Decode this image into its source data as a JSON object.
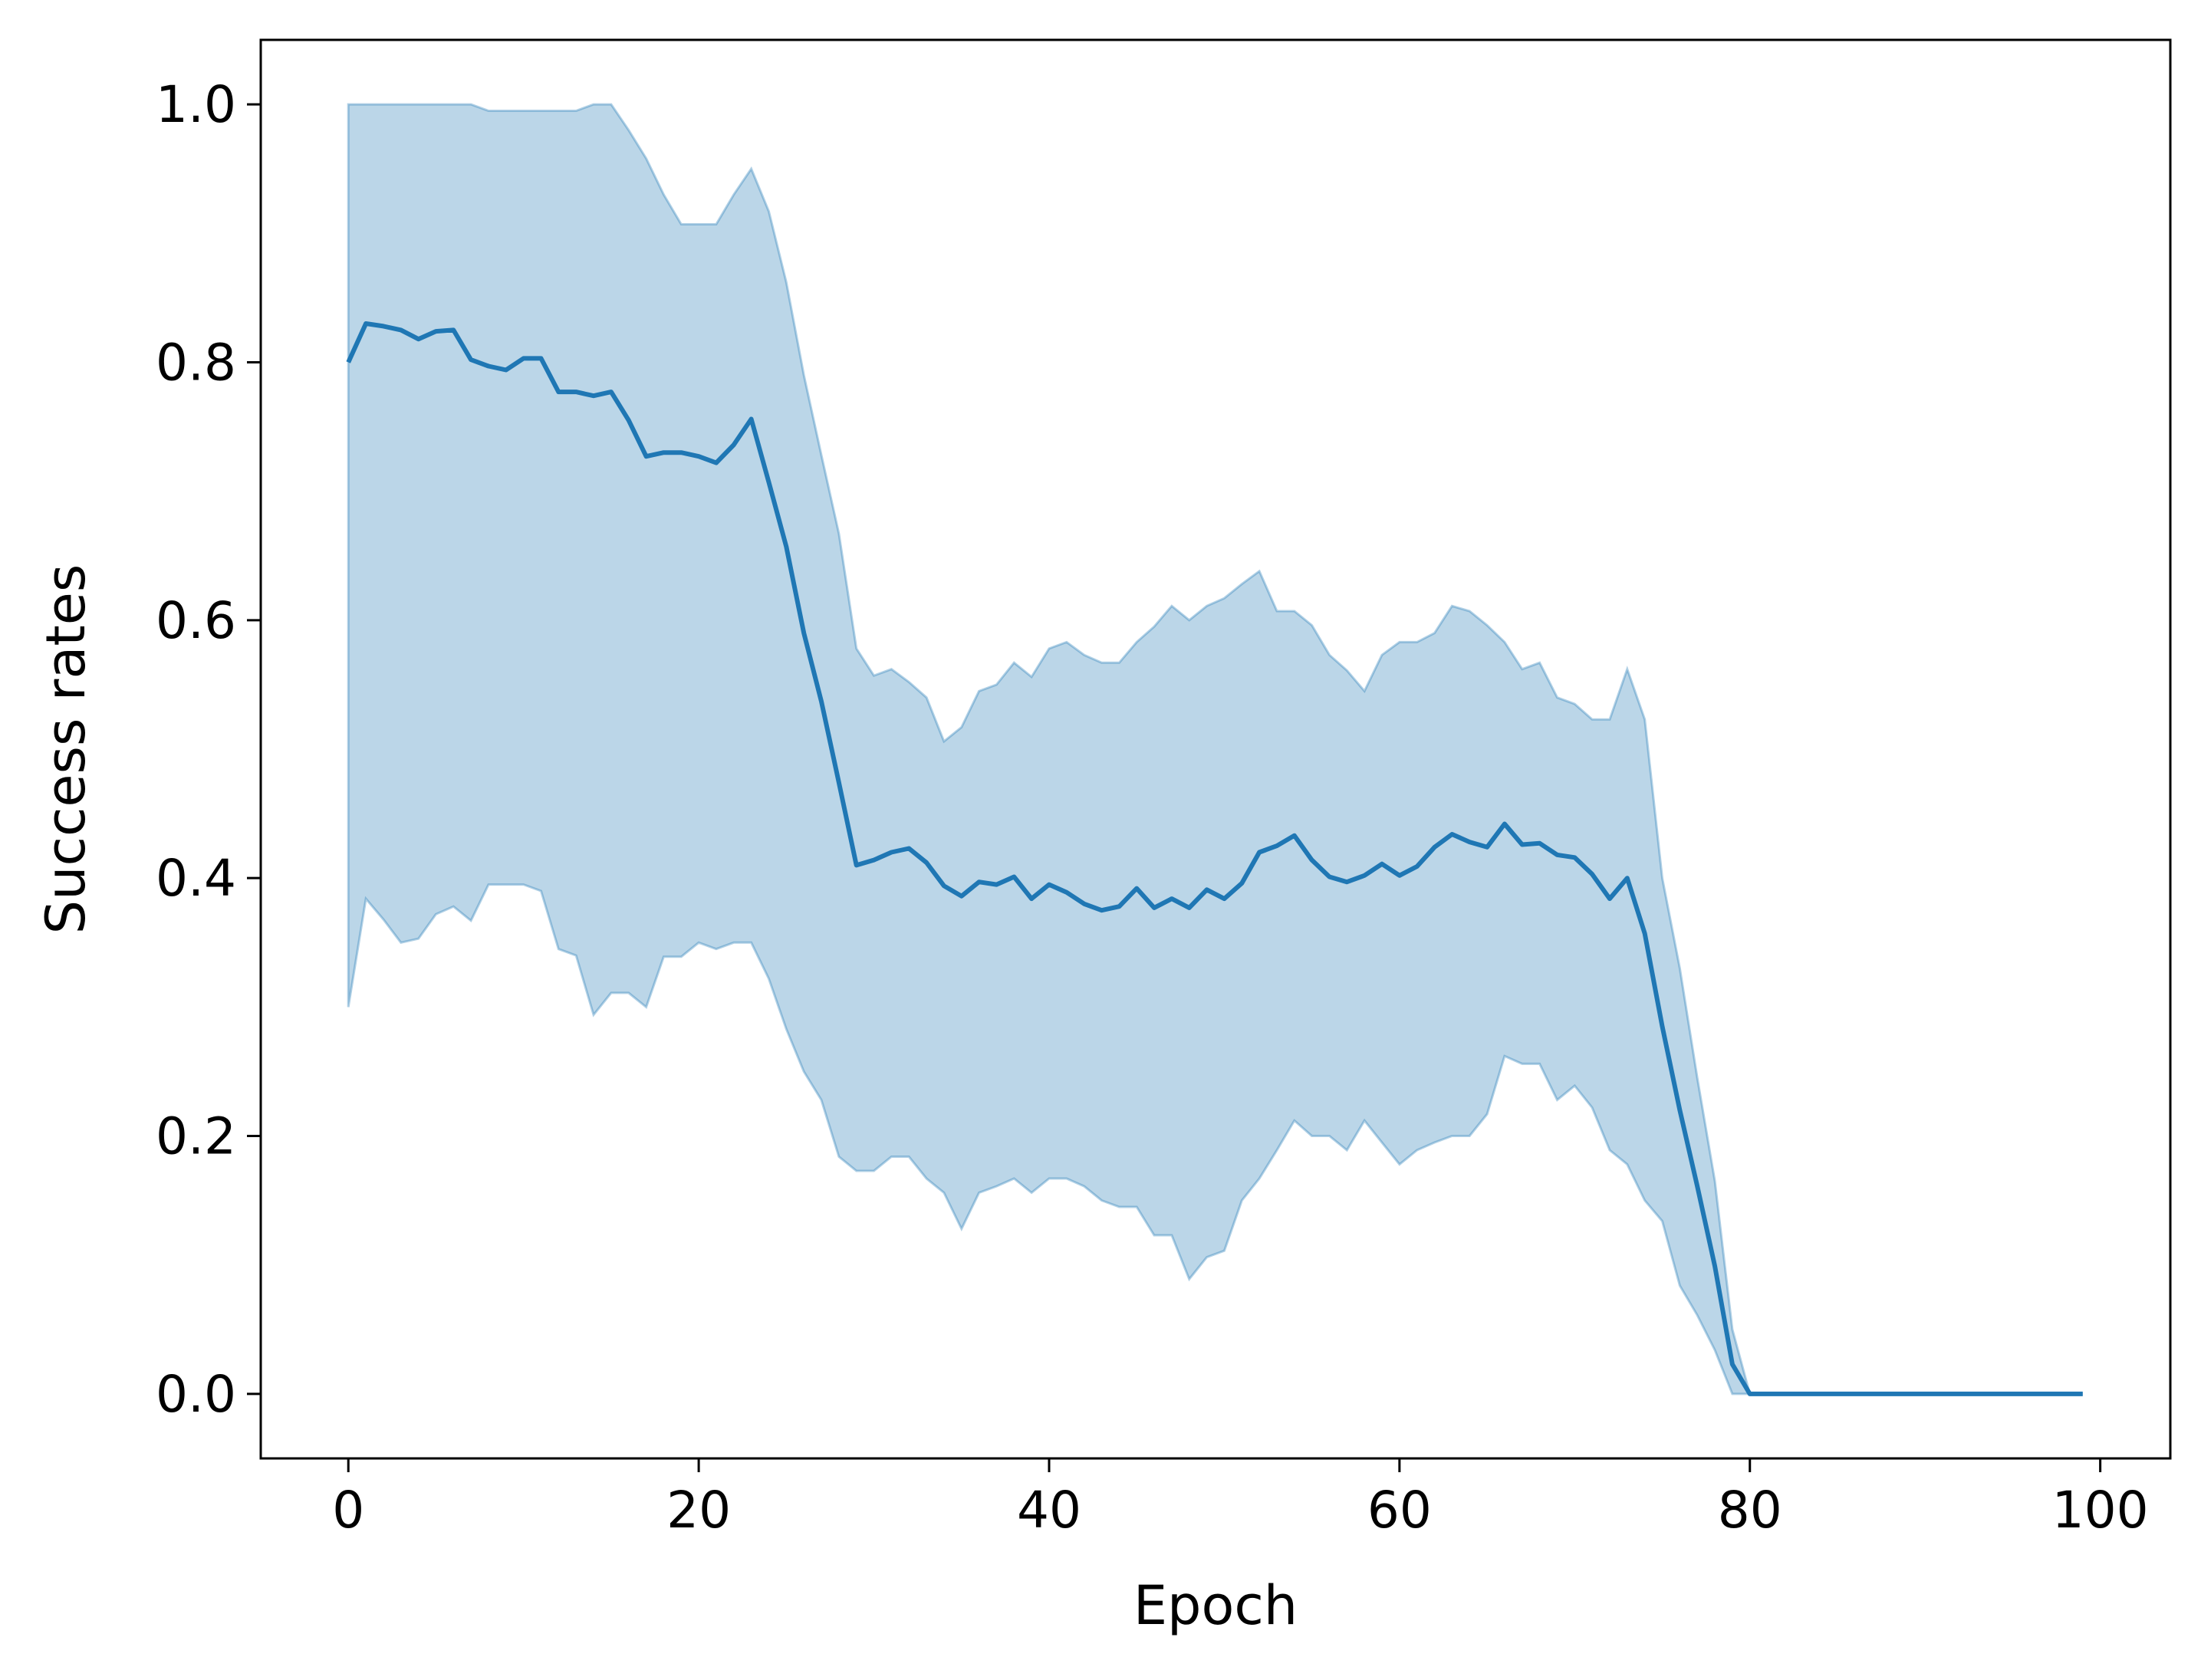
{
  "chart_data": {
    "type": "line",
    "title": "",
    "xlabel": "Epoch",
    "ylabel": "Success rates",
    "xlim": [
      -5,
      104
    ],
    "ylim": [
      -0.05,
      1.05
    ],
    "xticks": [
      0,
      20,
      40,
      60,
      80,
      100
    ],
    "xtick_labels": [
      "0",
      "20",
      "40",
      "60",
      "80",
      "100"
    ],
    "yticks": [
      0.0,
      0.2,
      0.4,
      0.6,
      0.8,
      1.0
    ],
    "ytick_labels": [
      "0.0",
      "0.2",
      "0.4",
      "0.6",
      "0.8",
      "1.0"
    ],
    "grid": false,
    "legend": null,
    "colors": {
      "line": "#1f77b4",
      "band": "#1f77b4",
      "band_opacity": 0.3
    },
    "x": [
      0,
      1,
      2,
      3,
      4,
      5,
      6,
      7,
      8,
      9,
      10,
      11,
      12,
      13,
      14,
      15,
      16,
      17,
      18,
      19,
      20,
      21,
      22,
      23,
      24,
      25,
      26,
      27,
      28,
      29,
      30,
      31,
      32,
      33,
      34,
      35,
      36,
      37,
      38,
      39,
      40,
      41,
      42,
      43,
      44,
      45,
      46,
      47,
      48,
      49,
      50,
      51,
      52,
      53,
      54,
      55,
      56,
      57,
      58,
      59,
      60,
      61,
      62,
      63,
      64,
      65,
      66,
      67,
      68,
      69,
      70,
      71,
      72,
      73,
      74,
      75,
      76,
      77,
      78,
      79,
      80,
      81,
      82,
      83,
      84,
      85,
      86,
      87,
      88,
      89,
      90,
      91,
      92,
      93,
      94,
      95,
      96,
      97,
      98,
      99
    ],
    "series": [
      {
        "values": [
          0.8,
          0.83,
          0.828,
          0.825,
          0.818,
          0.824,
          0.825,
          0.802,
          0.797,
          0.794,
          0.803,
          0.803,
          0.777,
          0.777,
          0.774,
          0.777,
          0.755,
          0.727,
          0.73,
          0.73,
          0.727,
          0.722,
          0.736,
          0.756,
          0.707,
          0.657,
          0.59,
          0.537,
          0.474,
          0.41,
          0.414,
          0.42,
          0.423,
          0.412,
          0.394,
          0.386,
          0.397,
          0.395,
          0.401,
          0.384,
          0.395,
          0.389,
          0.38,
          0.375,
          0.378,
          0.392,
          0.377,
          0.384,
          0.377,
          0.391,
          0.384,
          0.396,
          0.42,
          0.425,
          0.433,
          0.414,
          0.401,
          0.397,
          0.402,
          0.411,
          0.402,
          0.409,
          0.424,
          0.434,
          0.428,
          0.424,
          0.442,
          0.426,
          0.427,
          0.418,
          0.416,
          0.403,
          0.384,
          0.4,
          0.357,
          0.285,
          0.22,
          0.161,
          0.099,
          0.023,
          0.0,
          0.0,
          0.0,
          0.0,
          0.0,
          0.0,
          0.0,
          0.0,
          0.0,
          0.0,
          0.0,
          0.0,
          0.0,
          0.0,
          0.0,
          0.0,
          0.0,
          0.0,
          0.0,
          0.0
        ],
        "band_upper": [
          1.0,
          1.0,
          1.0,
          1.0,
          1.0,
          1.0,
          1.0,
          1.0,
          0.995,
          0.995,
          0.995,
          0.995,
          0.995,
          0.995,
          1.0,
          1.0,
          0.98,
          0.958,
          0.93,
          0.907,
          0.907,
          0.907,
          0.93,
          0.95,
          0.917,
          0.862,
          0.79,
          0.728,
          0.667,
          0.578,
          0.557,
          0.562,
          0.552,
          0.54,
          0.506,
          0.517,
          0.545,
          0.55,
          0.567,
          0.556,
          0.578,
          0.583,
          0.573,
          0.567,
          0.567,
          0.583,
          0.595,
          0.611,
          0.6,
          0.611,
          0.617,
          0.628,
          0.638,
          0.607,
          0.607,
          0.596,
          0.573,
          0.561,
          0.545,
          0.573,
          0.583,
          0.583,
          0.59,
          0.611,
          0.607,
          0.596,
          0.583,
          0.562,
          0.567,
          0.54,
          0.535,
          0.523,
          0.523,
          0.562,
          0.523,
          0.4,
          0.33,
          0.245,
          0.165,
          0.05,
          0.0,
          0.0,
          0.0,
          0.0,
          0.0,
          0.0,
          0.0,
          0.0,
          0.0,
          0.0,
          0.0,
          0.0,
          0.0,
          0.0,
          0.0,
          0.0,
          0.0,
          0.0,
          0.0,
          0.0
        ],
        "band_lower": [
          0.3,
          0.384,
          0.368,
          0.35,
          0.353,
          0.372,
          0.378,
          0.367,
          0.395,
          0.395,
          0.395,
          0.39,
          0.345,
          0.34,
          0.294,
          0.311,
          0.311,
          0.3,
          0.339,
          0.339,
          0.35,
          0.345,
          0.35,
          0.35,
          0.322,
          0.283,
          0.25,
          0.228,
          0.184,
          0.173,
          0.173,
          0.184,
          0.184,
          0.167,
          0.156,
          0.128,
          0.156,
          0.161,
          0.167,
          0.156,
          0.167,
          0.167,
          0.161,
          0.15,
          0.145,
          0.145,
          0.123,
          0.123,
          0.089,
          0.106,
          0.111,
          0.15,
          0.167,
          0.189,
          0.212,
          0.2,
          0.2,
          0.189,
          0.212,
          0.195,
          0.178,
          0.189,
          0.195,
          0.2,
          0.2,
          0.217,
          0.262,
          0.256,
          0.256,
          0.228,
          0.239,
          0.222,
          0.189,
          0.178,
          0.15,
          0.134,
          0.084,
          0.061,
          0.034,
          0.0,
          0.0,
          0.0,
          0.0,
          0.0,
          0.0,
          0.0,
          0.0,
          0.0,
          0.0,
          0.0,
          0.0,
          0.0,
          0.0,
          0.0,
          0.0,
          0.0,
          0.0,
          0.0,
          0.0,
          0.0
        ]
      }
    ]
  }
}
